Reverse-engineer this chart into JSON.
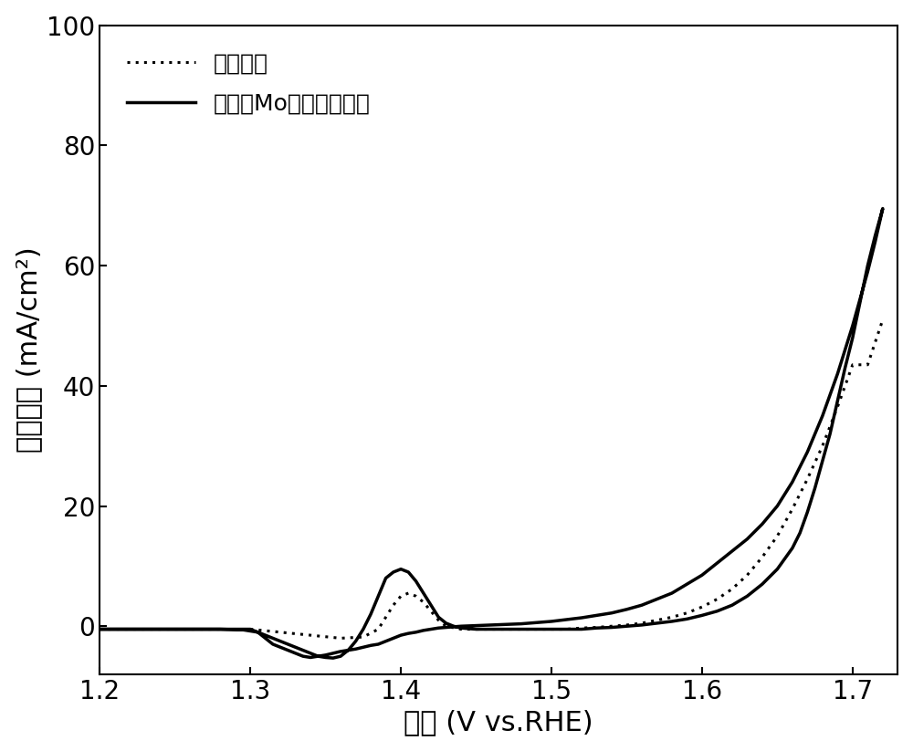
{
  "xlabel": "电位 (V vs.RHE)",
  "ylabel": "电流密度 (mA/cm²)",
  "xlim": [
    1.2,
    1.73
  ],
  "ylim": [
    -8,
    100
  ],
  "xticks": [
    1.2,
    1.3,
    1.4,
    1.5,
    1.6,
    1.7
  ],
  "yticks": [
    0,
    20,
    40,
    60,
    80,
    100
  ],
  "legend_labels": [
    "氢氧化镍",
    "自重构Mo掺杂氢氧化镍"
  ],
  "line_color": "#000000",
  "background_color": "#ffffff",
  "xlabel_fontsize": 22,
  "ylabel_fontsize": 22,
  "tick_fontsize": 20,
  "legend_fontsize": 18,
  "solid_linewidth": 2.5,
  "dotted_linewidth": 2.2,
  "solid_x": [
    1.2,
    1.22,
    1.24,
    1.26,
    1.28,
    1.295,
    1.3,
    1.305,
    1.31,
    1.315,
    1.32,
    1.325,
    1.33,
    1.335,
    1.34,
    1.345,
    1.35,
    1.355,
    1.36,
    1.365,
    1.37,
    1.375,
    1.38,
    1.385,
    1.39,
    1.395,
    1.4,
    1.405,
    1.41,
    1.415,
    1.42,
    1.425,
    1.43,
    1.435,
    1.44,
    1.45,
    1.46,
    1.47,
    1.48,
    1.49,
    1.5,
    1.51,
    1.52,
    1.53,
    1.54,
    1.55,
    1.56,
    1.57,
    1.58,
    1.59,
    1.6,
    1.61,
    1.62,
    1.63,
    1.64,
    1.65,
    1.66,
    1.665,
    1.67,
    1.675,
    1.68,
    1.685,
    1.69,
    1.695,
    1.7,
    1.705,
    1.71,
    1.715,
    1.72,
    1.715,
    1.71,
    1.705,
    1.7,
    1.695,
    1.69,
    1.685,
    1.68,
    1.675,
    1.67,
    1.665,
    1.66,
    1.655,
    1.65,
    1.64,
    1.63,
    1.62,
    1.61,
    1.6,
    1.59,
    1.58,
    1.57,
    1.56,
    1.55,
    1.54,
    1.53,
    1.52,
    1.51,
    1.5,
    1.49,
    1.48,
    1.47,
    1.46,
    1.45,
    1.44,
    1.435,
    1.43,
    1.425,
    1.42,
    1.415,
    1.41,
    1.405,
    1.4,
    1.395,
    1.39,
    1.385,
    1.38,
    1.375,
    1.37,
    1.365,
    1.36,
    1.355,
    1.35,
    1.345,
    1.34,
    1.335,
    1.33,
    1.325,
    1.32,
    1.315,
    1.31,
    1.305,
    1.3,
    1.295,
    1.28,
    1.26,
    1.24,
    1.22,
    1.2
  ],
  "solid_y": [
    -0.5,
    -0.5,
    -0.5,
    -0.5,
    -0.5,
    -0.6,
    -0.8,
    -1.0,
    -1.5,
    -2.0,
    -2.5,
    -3.0,
    -3.5,
    -4.0,
    -4.5,
    -5.0,
    -5.2,
    -5.3,
    -5.0,
    -4.0,
    -2.5,
    -0.5,
    2.0,
    5.0,
    8.0,
    9.0,
    9.5,
    9.0,
    7.5,
    5.5,
    3.5,
    1.5,
    0.5,
    0.0,
    -0.3,
    -0.5,
    -0.5,
    -0.5,
    -0.5,
    -0.5,
    -0.5,
    -0.5,
    -0.5,
    -0.3,
    -0.2,
    0.0,
    0.2,
    0.5,
    0.8,
    1.2,
    1.8,
    2.5,
    3.5,
    5.0,
    7.0,
    9.5,
    13.0,
    15.5,
    19.0,
    23.0,
    27.5,
    32.0,
    37.5,
    43.0,
    48.0,
    54.0,
    60.0,
    65.0,
    69.5,
    64.0,
    59.0,
    54.5,
    50.0,
    46.0,
    42.0,
    38.5,
    35.0,
    32.0,
    29.0,
    26.5,
    24.0,
    22.0,
    20.0,
    17.0,
    14.5,
    12.5,
    10.5,
    8.5,
    7.0,
    5.5,
    4.5,
    3.5,
    2.8,
    2.2,
    1.8,
    1.4,
    1.1,
    0.8,
    0.6,
    0.4,
    0.3,
    0.2,
    0.1,
    0.0,
    -0.1,
    -0.2,
    -0.3,
    -0.5,
    -0.7,
    -1.0,
    -1.2,
    -1.5,
    -2.0,
    -2.5,
    -3.0,
    -3.2,
    -3.5,
    -3.8,
    -4.0,
    -4.2,
    -4.5,
    -4.8,
    -5.0,
    -5.2,
    -5.0,
    -4.5,
    -4.0,
    -3.5,
    -3.0,
    -2.0,
    -1.0,
    -0.5,
    -0.5,
    -0.5,
    -0.5,
    -0.5,
    -0.5,
    -0.5
  ],
  "dotted_x": [
    1.2,
    1.22,
    1.24,
    1.26,
    1.28,
    1.3,
    1.32,
    1.34,
    1.36,
    1.375,
    1.385,
    1.39,
    1.395,
    1.4,
    1.405,
    1.41,
    1.415,
    1.42,
    1.425,
    1.43,
    1.44,
    1.45,
    1.46,
    1.47,
    1.48,
    1.49,
    1.5,
    1.51,
    1.52,
    1.53,
    1.54,
    1.55,
    1.56,
    1.57,
    1.58,
    1.59,
    1.6,
    1.61,
    1.62,
    1.63,
    1.64,
    1.65,
    1.66,
    1.67,
    1.68,
    1.69,
    1.7,
    1.71,
    1.72
  ],
  "dotted_y": [
    -0.5,
    -0.5,
    -0.5,
    -0.5,
    -0.5,
    -0.5,
    -1.0,
    -1.5,
    -2.0,
    -1.8,
    -0.5,
    1.5,
    3.5,
    5.0,
    5.5,
    5.0,
    4.0,
    2.5,
    1.0,
    0.0,
    -0.5,
    -0.5,
    -0.5,
    -0.5,
    -0.5,
    -0.5,
    -0.5,
    -0.5,
    -0.3,
    -0.2,
    0.0,
    0.2,
    0.5,
    1.0,
    1.5,
    2.2,
    3.2,
    4.5,
    6.2,
    8.5,
    11.5,
    15.0,
    19.5,
    24.5,
    30.0,
    36.5,
    43.5,
    43.5,
    51.0
  ]
}
